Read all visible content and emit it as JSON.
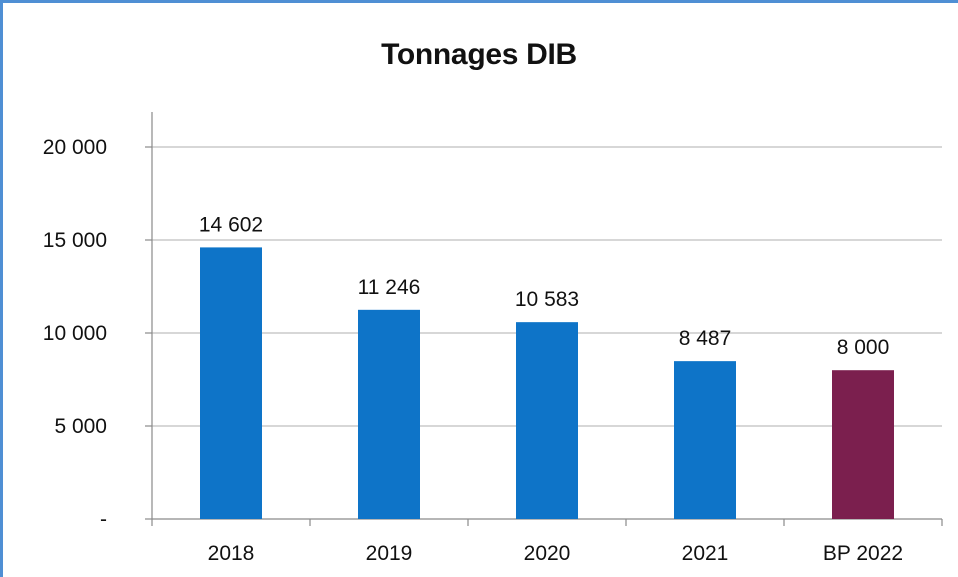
{
  "chart_data": {
    "type": "bar",
    "title": "Tonnages DIB",
    "xlabel": "",
    "ylabel": "",
    "categories": [
      "2018",
      "2019",
      "2020",
      "2021",
      "BP 2022"
    ],
    "values": [
      14602,
      11246,
      10583,
      8487,
      8000
    ],
    "value_labels": [
      "14 602",
      "11 246",
      "10 583",
      "8 487",
      "8 000"
    ],
    "bar_colors": [
      "#0e74c8",
      "#0e74c8",
      "#0e74c8",
      "#0e74c8",
      "#7b1f4e"
    ],
    "ylim": [
      0,
      20000
    ],
    "yticks": [
      0,
      5000,
      10000,
      15000,
      20000
    ],
    "ytick_labels": [
      "-",
      "5 000",
      "10 000",
      "15 000",
      "20 000"
    ],
    "grid": true,
    "legend": "none"
  }
}
